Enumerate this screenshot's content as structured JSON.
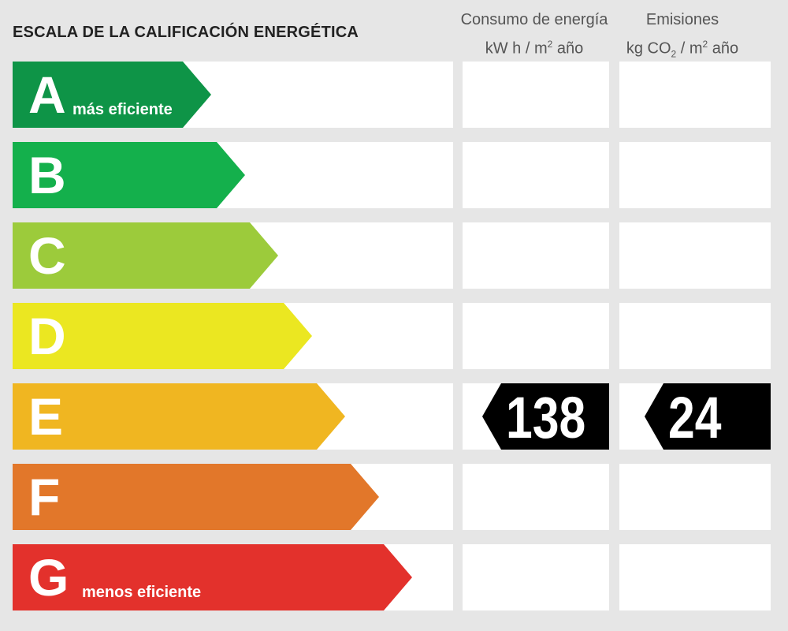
{
  "title": "ESCALA DE LA CALIFICACIÓN ENERGÉTICA",
  "columns": {
    "energy": {
      "line1": "Consumo de energía",
      "line2a": "kW h  / m",
      "sup": "2",
      "line2b": " año"
    },
    "emissions": {
      "line1": "Emisiones",
      "line2a": "kg CO",
      "sub": "2",
      "line2b": "  / m",
      "sup": "2",
      "line2c": " año"
    }
  },
  "ratings": [
    {
      "letter": "A",
      "sublabel": "más eficiente",
      "color": "#0e9447"
    },
    {
      "letter": "B",
      "sublabel": "",
      "color": "#14b04c"
    },
    {
      "letter": "C",
      "sublabel": "",
      "color": "#9ccb3b"
    },
    {
      "letter": "D",
      "sublabel": "",
      "color": "#ebe721"
    },
    {
      "letter": "E",
      "sublabel": "",
      "color": "#f0b621"
    },
    {
      "letter": "F",
      "sublabel": "",
      "color": "#e2772a"
    },
    {
      "letter": "G",
      "sublabel": "menos eficiente",
      "color": "#e3312c"
    }
  ],
  "current": {
    "rating": "E",
    "energy_value": "138",
    "emissions_value": "24",
    "marker_color": "#000000"
  }
}
